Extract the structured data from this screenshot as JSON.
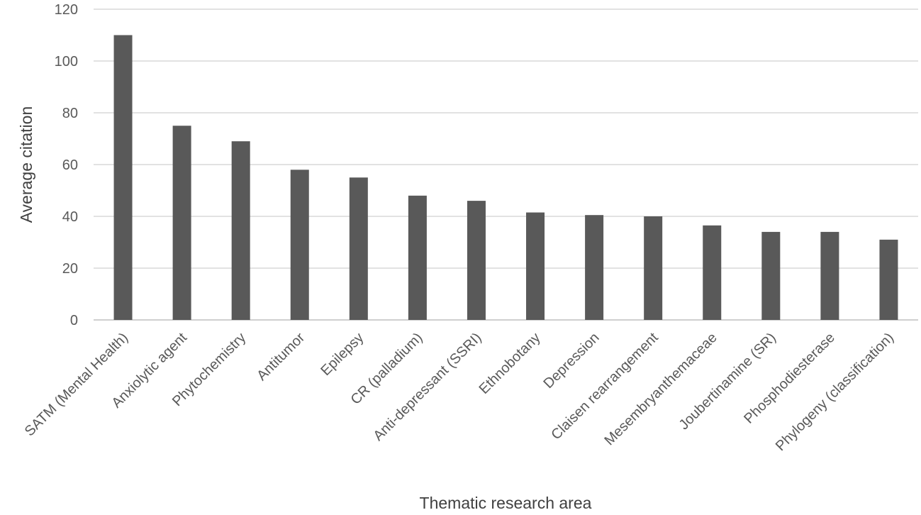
{
  "chart_data": {
    "type": "bar",
    "title": "",
    "xlabel": "Thematic research area",
    "ylabel": "Average citation",
    "ylim": [
      0,
      120
    ],
    "yticks": [
      0,
      20,
      40,
      60,
      80,
      100,
      120
    ],
    "grid": true,
    "legend": "none",
    "bar_color": "#595959",
    "categories": [
      "SATM (Mental Health)",
      "Anxiolytic agent",
      "Phytochemistry",
      "Antitumor",
      "Epilepsy",
      "CR (palladium)",
      "Anti-depressant (SSRI)",
      "Ethnobotany",
      "Depression",
      "Claisen rearrangement",
      "Mesembryanthemaceae",
      "Joubertinamine (SR)",
      "Phosphodiesterase",
      "Phylogeny (classification)"
    ],
    "values": [
      110,
      75,
      69,
      58,
      55,
      48,
      46,
      41.5,
      40.5,
      40,
      36.5,
      34,
      34,
      31
    ]
  }
}
